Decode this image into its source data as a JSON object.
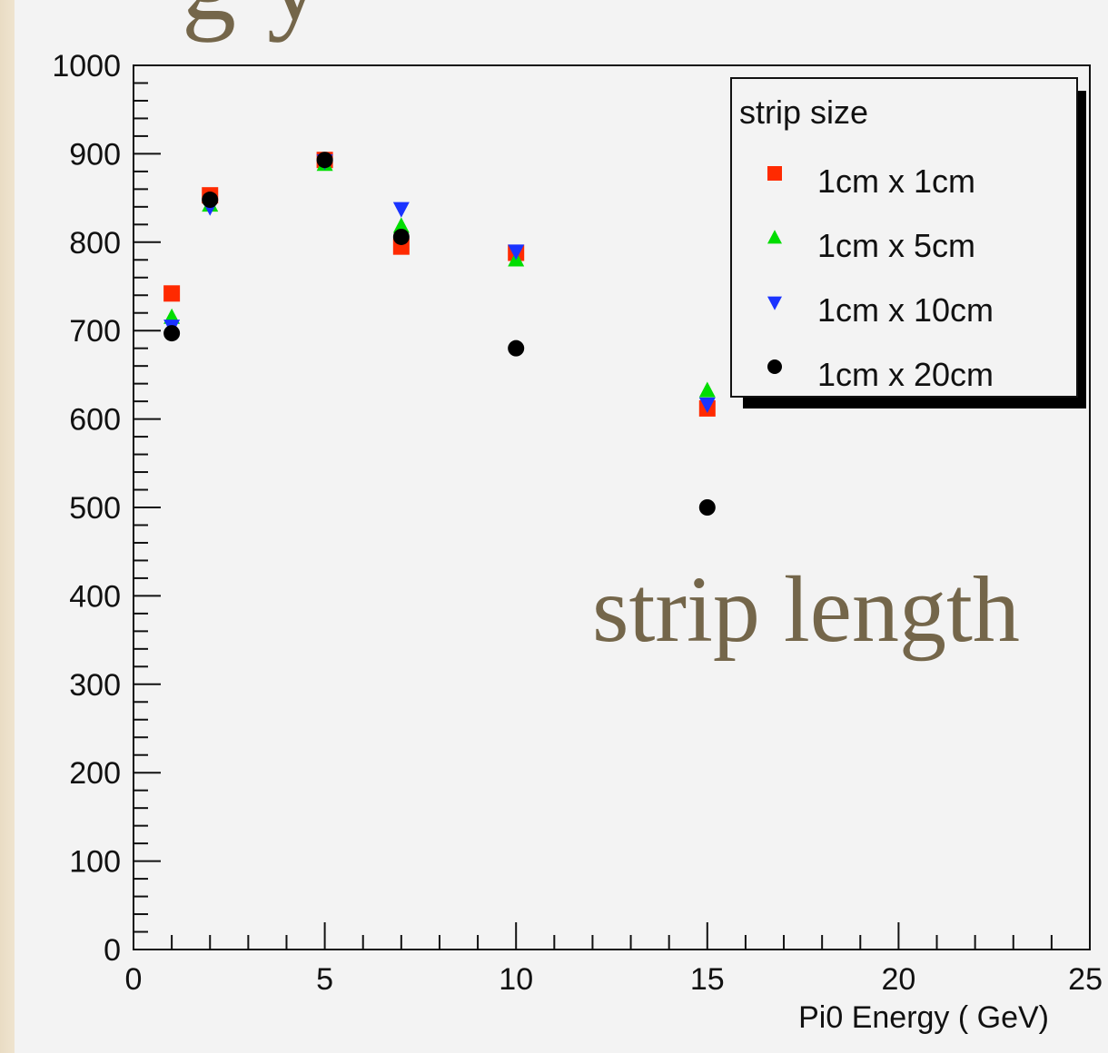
{
  "page": {
    "top_title": "g         y",
    "overlay_caption": "strip length"
  },
  "chart_data": {
    "type": "scatter",
    "xlabel": "Pi0 Energy ( GeV)",
    "ylabel": "",
    "xlim": [
      0,
      25
    ],
    "ylim": [
      0,
      1000
    ],
    "x_ticks": [
      0,
      5,
      10,
      15,
      20,
      25
    ],
    "y_ticks": [
      0,
      100,
      200,
      300,
      400,
      500,
      600,
      700,
      800,
      900,
      1000
    ],
    "grid": false,
    "legend": {
      "title": "strip size",
      "placement": "top-right"
    },
    "series": [
      {
        "name": "1cm x 1cm",
        "marker": "square",
        "color": "#ff2a00",
        "x": [
          1,
          2,
          5,
          7,
          10,
          15
        ],
        "y": [
          742,
          853,
          893,
          795,
          788,
          612
        ]
      },
      {
        "name": "1cm x 5cm",
        "marker": "triangle-up",
        "color": "#00dd00",
        "x": [
          1,
          2,
          5,
          7,
          10,
          15
        ],
        "y": [
          715,
          842,
          888,
          818,
          780,
          632
        ]
      },
      {
        "name": "1cm x 10cm",
        "marker": "triangle-down",
        "color": "#1a33ff",
        "x": [
          1,
          2,
          5,
          7,
          10,
          15
        ],
        "y": [
          705,
          840,
          892,
          838,
          790,
          617
        ]
      },
      {
        "name": "1cm x 20cm",
        "marker": "circle",
        "color": "#000000",
        "x": [
          1,
          2,
          5,
          7,
          10,
          15
        ],
        "y": [
          697,
          848,
          893,
          806,
          680,
          500
        ]
      }
    ]
  }
}
